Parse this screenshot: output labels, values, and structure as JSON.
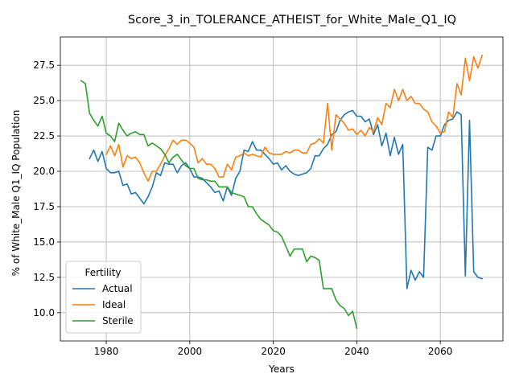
{
  "chart_data": {
    "type": "line",
    "title": "Score_3_in_TOLERANCE_ATHEIST_for_White_Male_Q1_IQ",
    "xlabel": "Years",
    "ylabel": "% of White_Male Q1_IQ Population",
    "xlim": [
      1969,
      2075
    ],
    "ylim": [
      8.0,
      29.5
    ],
    "xticks": [
      1980,
      2000,
      2020,
      2040,
      2060
    ],
    "yticks": [
      10.0,
      12.5,
      15.0,
      17.5,
      20.0,
      22.5,
      25.0,
      27.5
    ],
    "grid": true,
    "legend": {
      "title": "Fertility",
      "placement": "lower-left"
    },
    "series": [
      {
        "name": "Actual",
        "color": "#1f77b4",
        "x": [
          1976,
          1977,
          1978,
          1979,
          1980,
          1981,
          1982,
          1983,
          1984,
          1985,
          1986,
          1987,
          1988,
          1989,
          1990,
          1991,
          1992,
          1993,
          1994,
          1995,
          1996,
          1997,
          1998,
          1999,
          2000,
          2001,
          2002,
          2003,
          2004,
          2005,
          2006,
          2007,
          2008,
          2009,
          2010,
          2011,
          2012,
          2013,
          2014,
          2015,
          2016,
          2017,
          2018,
          2019,
          2020,
          2021,
          2022,
          2023,
          2024,
          2025,
          2026,
          2027,
          2028,
          2029,
          2030,
          2031,
          2032,
          2033,
          2034,
          2035,
          2036,
          2037,
          2038,
          2039,
          2040,
          2041,
          2042,
          2043,
          2044,
          2045,
          2046,
          2047,
          2048,
          2049,
          2050,
          2051,
          2052,
          2053,
          2054,
          2055,
          2056,
          2057,
          2058,
          2059,
          2060,
          2061,
          2062,
          2063,
          2064,
          2065,
          2066,
          2067,
          2068,
          2069,
          2070
        ],
        "values": [
          20.9,
          21.5,
          20.7,
          21.4,
          20.2,
          19.9,
          19.9,
          20.0,
          19.0,
          19.1,
          18.4,
          18.5,
          18.1,
          17.7,
          18.2,
          18.9,
          19.9,
          19.7,
          20.6,
          20.5,
          20.5,
          19.9,
          20.4,
          20.6,
          20.2,
          19.6,
          19.6,
          19.5,
          19.2,
          18.9,
          18.5,
          18.6,
          17.9,
          18.9,
          18.3,
          19.5,
          20.0,
          21.5,
          21.4,
          22.1,
          21.5,
          21.5,
          21.2,
          20.9,
          20.5,
          20.6,
          20.1,
          20.4,
          20.0,
          19.8,
          19.7,
          19.8,
          19.9,
          20.2,
          21.1,
          21.1,
          21.6,
          21.9,
          22.6,
          22.8,
          23.6,
          24.0,
          24.2,
          24.3,
          23.9,
          23.9,
          23.5,
          23.7,
          22.6,
          23.3,
          21.8,
          22.7,
          21.1,
          22.4,
          21.2,
          21.9,
          11.7,
          13.0,
          12.3,
          12.9,
          12.5,
          21.7,
          21.5,
          22.5,
          22.5,
          23.3,
          23.6,
          23.7,
          24.2,
          24.0,
          12.6,
          23.6,
          12.9,
          12.5,
          12.4
        ]
      },
      {
        "name": "Ideal",
        "color": "#ff7f0e",
        "x": [
          1980,
          1981,
          1982,
          1983,
          1984,
          1985,
          1986,
          1987,
          1988,
          1989,
          1990,
          1991,
          1992,
          1993,
          1994,
          1995,
          1996,
          1997,
          1998,
          1999,
          2000,
          2001,
          2002,
          2003,
          2004,
          2005,
          2006,
          2007,
          2008,
          2009,
          2010,
          2011,
          2012,
          2013,
          2014,
          2015,
          2016,
          2017,
          2018,
          2019,
          2020,
          2021,
          2022,
          2023,
          2024,
          2025,
          2026,
          2027,
          2028,
          2029,
          2030,
          2031,
          2032,
          2033,
          2034,
          2035,
          2036,
          2037,
          2038,
          2039,
          2040,
          2041,
          2042,
          2043,
          2044,
          2045,
          2046,
          2047,
          2048,
          2049,
          2050,
          2051,
          2052,
          2053,
          2054,
          2055,
          2056,
          2057,
          2058,
          2059,
          2060,
          2061,
          2062,
          2063,
          2064,
          2065,
          2066,
          2067,
          2068,
          2069,
          2070
        ],
        "values": [
          21.2,
          21.8,
          21.1,
          21.9,
          20.3,
          21.1,
          20.9,
          21.0,
          20.6,
          19.9,
          19.3,
          20.0,
          20.0,
          20.5,
          21.1,
          21.6,
          22.2,
          21.9,
          22.2,
          22.2,
          22.0,
          21.7,
          20.6,
          20.9,
          20.5,
          20.5,
          20.2,
          19.6,
          19.6,
          20.5,
          20.1,
          21.0,
          21.1,
          21.3,
          21.1,
          21.2,
          21.1,
          21.0,
          21.7,
          21.3,
          21.2,
          21.2,
          21.2,
          21.4,
          21.3,
          21.5,
          21.5,
          21.3,
          21.3,
          21.9,
          22.0,
          22.3,
          22.0,
          24.8,
          21.5,
          24.0,
          23.7,
          23.4,
          22.9,
          23.0,
          22.6,
          22.9,
          22.5,
          23.1,
          22.8,
          23.8,
          23.3,
          24.8,
          24.5,
          25.8,
          25.0,
          25.8,
          25.0,
          25.3,
          24.8,
          24.8,
          24.4,
          24.2,
          23.5,
          23.2,
          22.7,
          22.8,
          24.2,
          23.8,
          26.2,
          25.4,
          28.0,
          26.4,
          28.1,
          27.3,
          28.2
        ]
      },
      {
        "name": "Sterile",
        "color": "#2ca02c",
        "x": [
          1974,
          1975,
          1976,
          1977,
          1978,
          1979,
          1980,
          1981,
          1982,
          1983,
          1984,
          1985,
          1986,
          1987,
          1988,
          1989,
          1990,
          1991,
          1992,
          1993,
          1994,
          1995,
          1996,
          1997,
          1998,
          1999,
          2000,
          2001,
          2002,
          2003,
          2004,
          2005,
          2006,
          2007,
          2008,
          2009,
          2010,
          2011,
          2012,
          2013,
          2014,
          2015,
          2016,
          2017,
          2018,
          2019,
          2020,
          2021,
          2022,
          2023,
          2024,
          2025,
          2026,
          2027,
          2028,
          2029,
          2030,
          2031,
          2032,
          2033,
          2034,
          2035,
          2036,
          2037,
          2038,
          2039,
          2040
        ],
        "values": [
          26.4,
          26.2,
          24.1,
          23.6,
          23.2,
          23.9,
          22.7,
          22.5,
          22.1,
          23.4,
          22.9,
          22.5,
          22.7,
          22.8,
          22.6,
          22.6,
          21.8,
          22.0,
          21.8,
          21.6,
          21.2,
          20.6,
          21.0,
          21.2,
          20.8,
          20.4,
          20.2,
          20.2,
          19.5,
          19.4,
          19.4,
          19.3,
          19.3,
          18.9,
          18.9,
          18.9,
          18.5,
          18.4,
          18.3,
          18.2,
          17.5,
          17.5,
          17.0,
          16.6,
          16.4,
          16.2,
          15.8,
          15.7,
          15.4,
          14.7,
          14.0,
          14.5,
          14.5,
          14.5,
          13.6,
          14.0,
          13.9,
          13.7,
          11.7,
          11.7,
          11.7,
          10.9,
          10.5,
          10.3,
          9.8,
          10.1,
          8.9
        ]
      }
    ]
  }
}
